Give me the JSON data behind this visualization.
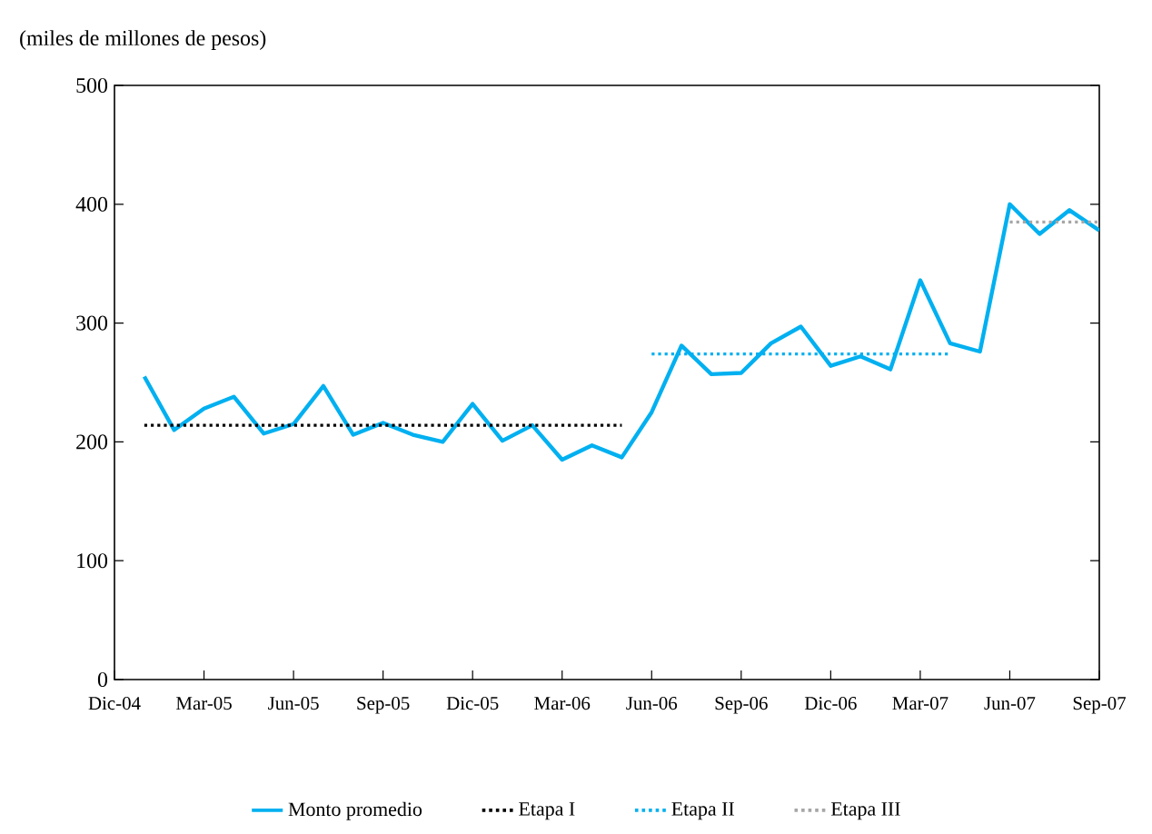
{
  "chart_data": {
    "type": "line",
    "ylabel": "(miles de millones de pesos)",
    "xlim": [
      "2004-12",
      "2007-09"
    ],
    "xticks": [
      {
        "value": "2004-12",
        "label": "Dic-04"
      },
      {
        "value": "2005-03",
        "label": "Mar-05"
      },
      {
        "value": "2005-06",
        "label": "Jun-05"
      },
      {
        "value": "2005-09",
        "label": "Sep-05"
      },
      {
        "value": "2005-12",
        "label": "Dic-05"
      },
      {
        "value": "2006-03",
        "label": "Mar-06"
      },
      {
        "value": "2006-06",
        "label": "Jun-06"
      },
      {
        "value": "2006-09",
        "label": "Sep-06"
      },
      {
        "value": "2006-12",
        "label": "Dic-06"
      },
      {
        "value": "2007-03",
        "label": "Mar-07"
      },
      {
        "value": "2007-06",
        "label": "Jun-07"
      },
      {
        "value": "2007-09",
        "label": "Sep-07"
      }
    ],
    "ylim": [
      0,
      500
    ],
    "yticks": [
      0,
      100,
      200,
      300,
      400,
      500
    ],
    "legend": "bottom",
    "series": [
      {
        "name": "Monto promedio",
        "color": "#00b0f0",
        "line_style": "solid",
        "x": [
          "2005-01",
          "2005-02",
          "2005-03",
          "2005-04",
          "2005-05",
          "2005-06",
          "2005-07",
          "2005-08",
          "2005-09",
          "2005-10",
          "2005-11",
          "2005-12",
          "2006-01",
          "2006-02",
          "2006-03",
          "2006-04",
          "2006-05",
          "2006-06",
          "2006-07",
          "2006-08",
          "2006-09",
          "2006-10",
          "2006-11",
          "2006-12",
          "2007-01",
          "2007-02",
          "2007-03",
          "2007-04",
          "2007-05",
          "2007-06",
          "2007-07",
          "2007-08",
          "2007-09"
        ],
        "values": [
          255,
          210,
          228,
          238,
          207,
          215,
          247,
          206,
          216,
          206,
          200,
          232,
          201,
          214,
          185,
          197,
          187,
          225,
          281,
          257,
          258,
          283,
          297,
          264,
          272,
          261,
          336,
          283,
          276,
          400,
          375,
          395,
          378
        ]
      },
      {
        "name": "Etapa I",
        "color": "#000000",
        "line_style": "dotted",
        "x": [
          "2005-01",
          "2006-05"
        ],
        "values": [
          214,
          214
        ]
      },
      {
        "name": "Etapa II",
        "color": "#00b0f0",
        "line_style": "dotted",
        "x": [
          "2006-06",
          "2007-04"
        ],
        "values": [
          274,
          274
        ]
      },
      {
        "name": "Etapa III",
        "color": "#a6a6a6",
        "line_style": "dotted",
        "x": [
          "2007-06",
          "2007-09"
        ],
        "values": [
          385,
          385
        ]
      }
    ]
  }
}
